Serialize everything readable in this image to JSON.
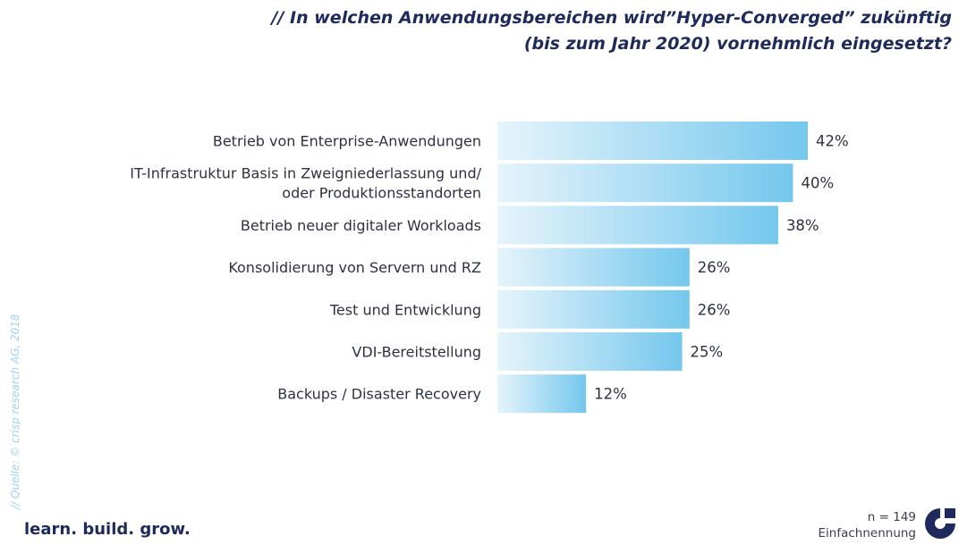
{
  "header": {
    "title_line1": "// In welchen Anwendungsbereichen wird”Hyper-Converged” zukünftig",
    "title_line2": "(bis zum Jahr 2020) vornehmlich eingesetzt?"
  },
  "chart_data": {
    "type": "bar",
    "orientation": "horizontal",
    "categories": [
      [
        "Betrieb von Enterprise-Anwendungen"
      ],
      [
        "IT-Infrastruktur Basis in Zweigniederlassung und/",
        "oder Produktionsstandorten"
      ],
      [
        "Betrieb neuer digitaler Workloads"
      ],
      [
        "Konsolidierung von Servern und RZ"
      ],
      [
        "Test und Entwicklung"
      ],
      [
        "VDI-Bereitstellung"
      ],
      [
        "Backups / Disaster Recovery"
      ]
    ],
    "values": [
      42,
      40,
      38,
      26,
      26,
      25,
      12
    ],
    "value_labels": [
      "42%",
      "40%",
      "38%",
      "26%",
      "26%",
      "25%",
      "12%"
    ],
    "unit": "%",
    "xlim": [
      0,
      42
    ],
    "grid": false,
    "bar_gradient": [
      "#e6f4fb",
      "#74c7ed"
    ]
  },
  "footer": {
    "source": "// Quelle: © crisp research AG, 2018",
    "slogan": "learn. build. grow.",
    "sample_size": "n = 149",
    "sample_type": "Einfachnennung",
    "logo_icon": "crisp-c-logo-icon",
    "brand_color": "#1f2a5c"
  }
}
